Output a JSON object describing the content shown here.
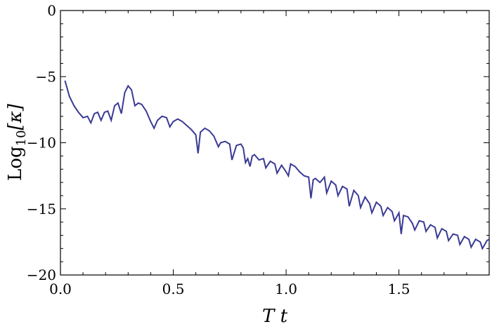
{
  "chart_data": {
    "type": "line",
    "title": "",
    "xlabel": "T t",
    "ylabel": "Log10[κ]",
    "ylabel_parts": {
      "base": "Log",
      "sub": "10",
      "arg": "[κ]"
    },
    "xlim": [
      0.0,
      1.9
    ],
    "ylim": [
      -20,
      0
    ],
    "grid": false,
    "legend": "none",
    "line_color": "#3a3a95",
    "x_ticks": [
      {
        "value": 0.0,
        "label": "0.0"
      },
      {
        "value": 0.5,
        "label": "0.5"
      },
      {
        "value": 1.0,
        "label": "1.0"
      },
      {
        "value": 1.5,
        "label": "1.5"
      }
    ],
    "y_ticks": [
      {
        "value": 0,
        "label": "0"
      },
      {
        "value": -5,
        "label": "−5"
      },
      {
        "value": -10,
        "label": "−10"
      },
      {
        "value": -15,
        "label": "−15"
      },
      {
        "value": -20,
        "label": "−20"
      }
    ],
    "series": [
      {
        "x": [
          0.02,
          0.04,
          0.06,
          0.08,
          0.1,
          0.12,
          0.135,
          0.15,
          0.165,
          0.18,
          0.195,
          0.21,
          0.225,
          0.24,
          0.255,
          0.27,
          0.285,
          0.3,
          0.315,
          0.33,
          0.345,
          0.36,
          0.38,
          0.4,
          0.415,
          0.43,
          0.45,
          0.47,
          0.485,
          0.5,
          0.52,
          0.54,
          0.56,
          0.58,
          0.6,
          0.61,
          0.62,
          0.64,
          0.66,
          0.68,
          0.7,
          0.71,
          0.73,
          0.75,
          0.76,
          0.78,
          0.8,
          0.81,
          0.82,
          0.83,
          0.84,
          0.85,
          0.86,
          0.88,
          0.9,
          0.91,
          0.93,
          0.95,
          0.96,
          0.98,
          1.0,
          1.01,
          1.02,
          1.04,
          1.06,
          1.08,
          1.1,
          1.11,
          1.12,
          1.13,
          1.15,
          1.17,
          1.18,
          1.2,
          1.22,
          1.23,
          1.25,
          1.27,
          1.28,
          1.3,
          1.32,
          1.33,
          1.35,
          1.37,
          1.38,
          1.4,
          1.42,
          1.43,
          1.45,
          1.47,
          1.48,
          1.5,
          1.51,
          1.52,
          1.54,
          1.56,
          1.57,
          1.59,
          1.61,
          1.62,
          1.64,
          1.66,
          1.67,
          1.69,
          1.71,
          1.72,
          1.74,
          1.76,
          1.77,
          1.79,
          1.81,
          1.82,
          1.84,
          1.86,
          1.87,
          1.89,
          1.9
        ],
        "values": [
          -5.3,
          -6.5,
          -7.2,
          -7.7,
          -8.1,
          -8.0,
          -8.5,
          -7.8,
          -7.7,
          -8.3,
          -7.7,
          -7.6,
          -8.3,
          -7.2,
          -7.0,
          -7.8,
          -6.2,
          -5.7,
          -6.0,
          -7.2,
          -7.0,
          -7.1,
          -7.6,
          -8.4,
          -8.9,
          -8.3,
          -8.0,
          -8.1,
          -8.8,
          -8.4,
          -8.2,
          -8.4,
          -8.7,
          -9.0,
          -9.4,
          -10.8,
          -9.2,
          -8.9,
          -9.1,
          -9.5,
          -10.3,
          -10.0,
          -9.9,
          -10.1,
          -11.3,
          -10.2,
          -10.1,
          -10.4,
          -11.5,
          -11.2,
          -11.8,
          -11.0,
          -10.9,
          -11.3,
          -11.2,
          -11.9,
          -11.4,
          -11.6,
          -12.3,
          -11.7,
          -12.2,
          -12.5,
          -11.6,
          -11.8,
          -12.2,
          -12.5,
          -12.6,
          -14.2,
          -12.8,
          -12.7,
          -13.0,
          -12.6,
          -13.8,
          -12.9,
          -13.2,
          -14.0,
          -13.3,
          -13.5,
          -14.8,
          -13.6,
          -14.0,
          -14.9,
          -14.1,
          -14.6,
          -15.3,
          -14.5,
          -14.8,
          -15.5,
          -14.9,
          -15.2,
          -15.9,
          -15.3,
          -16.9,
          -15.5,
          -15.6,
          -16.1,
          -16.6,
          -15.9,
          -16.0,
          -16.7,
          -16.2,
          -16.4,
          -17.2,
          -16.5,
          -16.7,
          -17.4,
          -16.9,
          -17.0,
          -17.7,
          -17.1,
          -17.3,
          -17.9,
          -17.3,
          -17.5,
          -18.0,
          -17.4,
          -17.3
        ]
      }
    ]
  }
}
